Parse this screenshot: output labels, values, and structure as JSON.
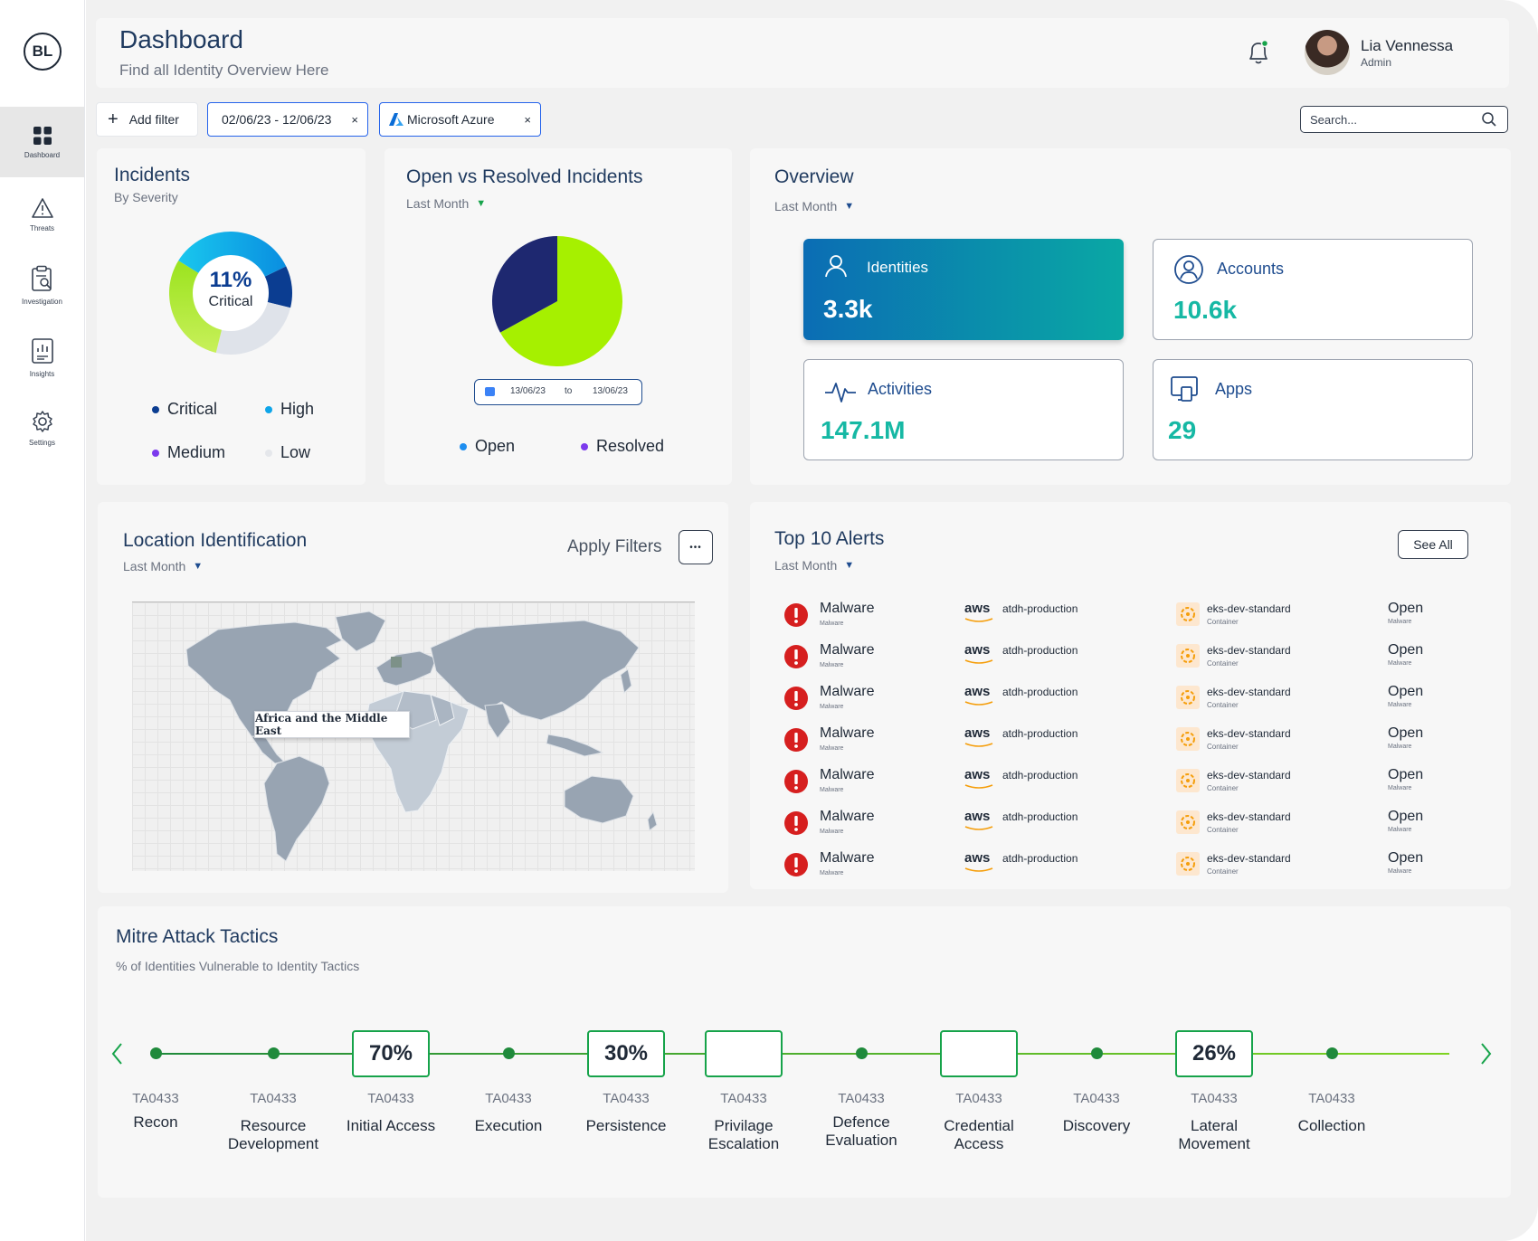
{
  "sidebar": {
    "logo": "BL",
    "items": [
      {
        "label": "Dashboard"
      },
      {
        "label": "Threats"
      },
      {
        "label": "Investigation"
      },
      {
        "label": "Insights"
      },
      {
        "label": "Settings"
      }
    ]
  },
  "header": {
    "title": "Dashboard",
    "subtitle": "Find all Identity Overview Here",
    "user_name": "Lia Vennessa",
    "user_role": "Admin"
  },
  "filters": {
    "add_label": "Add filter",
    "date_range": "02/06/23 - 12/06/23",
    "source": "Microsoft Azure",
    "remove": "×",
    "search_placeholder": "Search..."
  },
  "incidents": {
    "title": "Incidents",
    "subtitle": "By Severity",
    "center_value": "11%",
    "center_label": "Critical",
    "legend": [
      {
        "name": "Critical",
        "color": "#0b3d91"
      },
      {
        "name": "High",
        "color": "#0ea5e9"
      },
      {
        "name": "Medium",
        "color": "#7c3aed"
      },
      {
        "name": "Low",
        "color": "#e5e7eb"
      }
    ]
  },
  "open_resolved": {
    "title": "Open vs Resolved Incidents",
    "period": "Last Month",
    "date_from": "13/06/23",
    "date_sep": "to",
    "date_to": "13/06/23",
    "legend": [
      {
        "name": "Open",
        "color": "#1d8ef0"
      },
      {
        "name": "Resolved",
        "color": "#7c3aed"
      }
    ]
  },
  "overview": {
    "title": "Overview",
    "period": "Last Month",
    "tiles": [
      {
        "label": "Identities",
        "value": "3.3k"
      },
      {
        "label": "Accounts",
        "value": "10.6k"
      },
      {
        "label": "Activities",
        "value": "147.1M"
      },
      {
        "label": "Apps",
        "value": "29"
      }
    ]
  },
  "location": {
    "title": "Location Identification",
    "period": "Last Month",
    "apply_label": "Apply Filters",
    "more": "•••",
    "tooltip": "Africa and the Middle East"
  },
  "alerts": {
    "title": "Top 10 Alerts",
    "period": "Last Month",
    "see_all": "See All",
    "rows": [
      {
        "name": "Malware",
        "type": "Malware",
        "provider": "aws",
        "source": "atdh-production",
        "container": "eks-dev-standard",
        "container_type": "Container",
        "status": "Open",
        "status_sub": "Malware"
      },
      {
        "name": "Malware",
        "type": "Malware",
        "provider": "aws",
        "source": "atdh-production",
        "container": "eks-dev-standard",
        "container_type": "Container",
        "status": "Open",
        "status_sub": "Malware"
      },
      {
        "name": "Malware",
        "type": "Malware",
        "provider": "aws",
        "source": "atdh-production",
        "container": "eks-dev-standard",
        "container_type": "Container",
        "status": "Open",
        "status_sub": "Malware"
      },
      {
        "name": "Malware",
        "type": "Malware",
        "provider": "aws",
        "source": "atdh-production",
        "container": "eks-dev-standard",
        "container_type": "Container",
        "status": "Open",
        "status_sub": "Malware"
      },
      {
        "name": "Malware",
        "type": "Malware",
        "provider": "aws",
        "source": "atdh-production",
        "container": "eks-dev-standard",
        "container_type": "Container",
        "status": "Open",
        "status_sub": "Malware"
      },
      {
        "name": "Malware",
        "type": "Malware",
        "provider": "aws",
        "source": "atdh-production",
        "container": "eks-dev-standard",
        "container_type": "Container",
        "status": "Open",
        "status_sub": "Malware"
      },
      {
        "name": "Malware",
        "type": "Malware",
        "provider": "aws",
        "source": "atdh-production",
        "container": "eks-dev-standard",
        "container_type": "Container",
        "status": "Open",
        "status_sub": "Malware"
      }
    ]
  },
  "mitre": {
    "title": "Mitre Attack Tactics",
    "subtitle": "% of Identities Vulnerable to Identity Tactics",
    "tactics": [
      {
        "code": "TA0433",
        "name": "Recon",
        "value": ""
      },
      {
        "code": "TA0433",
        "name": "Resource Development",
        "value": ""
      },
      {
        "code": "TA0433",
        "name": "Initial Access",
        "value": "70%"
      },
      {
        "code": "TA0433",
        "name": "Execution",
        "value": ""
      },
      {
        "code": "TA0433",
        "name": "Persistence",
        "value": "30%"
      },
      {
        "code": "TA0433",
        "name": "Privilage Escalation",
        "value": ""
      },
      {
        "code": "TA0433",
        "name": "Defence Evaluation",
        "value": ""
      },
      {
        "code": "TA0433",
        "name": "Credential Access",
        "value": ""
      },
      {
        "code": "TA0433",
        "name": "Discovery",
        "value": ""
      },
      {
        "code": "TA0433",
        "name": "Lateral Movement",
        "value": "26%"
      },
      {
        "code": "TA0433",
        "name": "Collection",
        "value": ""
      }
    ]
  },
  "chart_data": [
    {
      "type": "pie",
      "title": "Incidents",
      "categories": [
        "Critical",
        "High",
        "Medium",
        "Low"
      ],
      "values": [
        11,
        34,
        30,
        25
      ],
      "colors": [
        "#0b3d91",
        "#0ea5e9",
        "#7c3aed",
        "#e5e7eb"
      ]
    },
    {
      "type": "pie",
      "title": "Open vs Resolved Incidents",
      "categories": [
        "Open",
        "Resolved"
      ],
      "values": [
        33,
        67
      ],
      "colors": [
        "#1e2870",
        "#a6f000"
      ]
    }
  ],
  "colors": {
    "accent_green": "#16a34a",
    "critical_red": "#d61f1f",
    "teal": "#16b8a4",
    "navy": "#1f3a5f"
  }
}
